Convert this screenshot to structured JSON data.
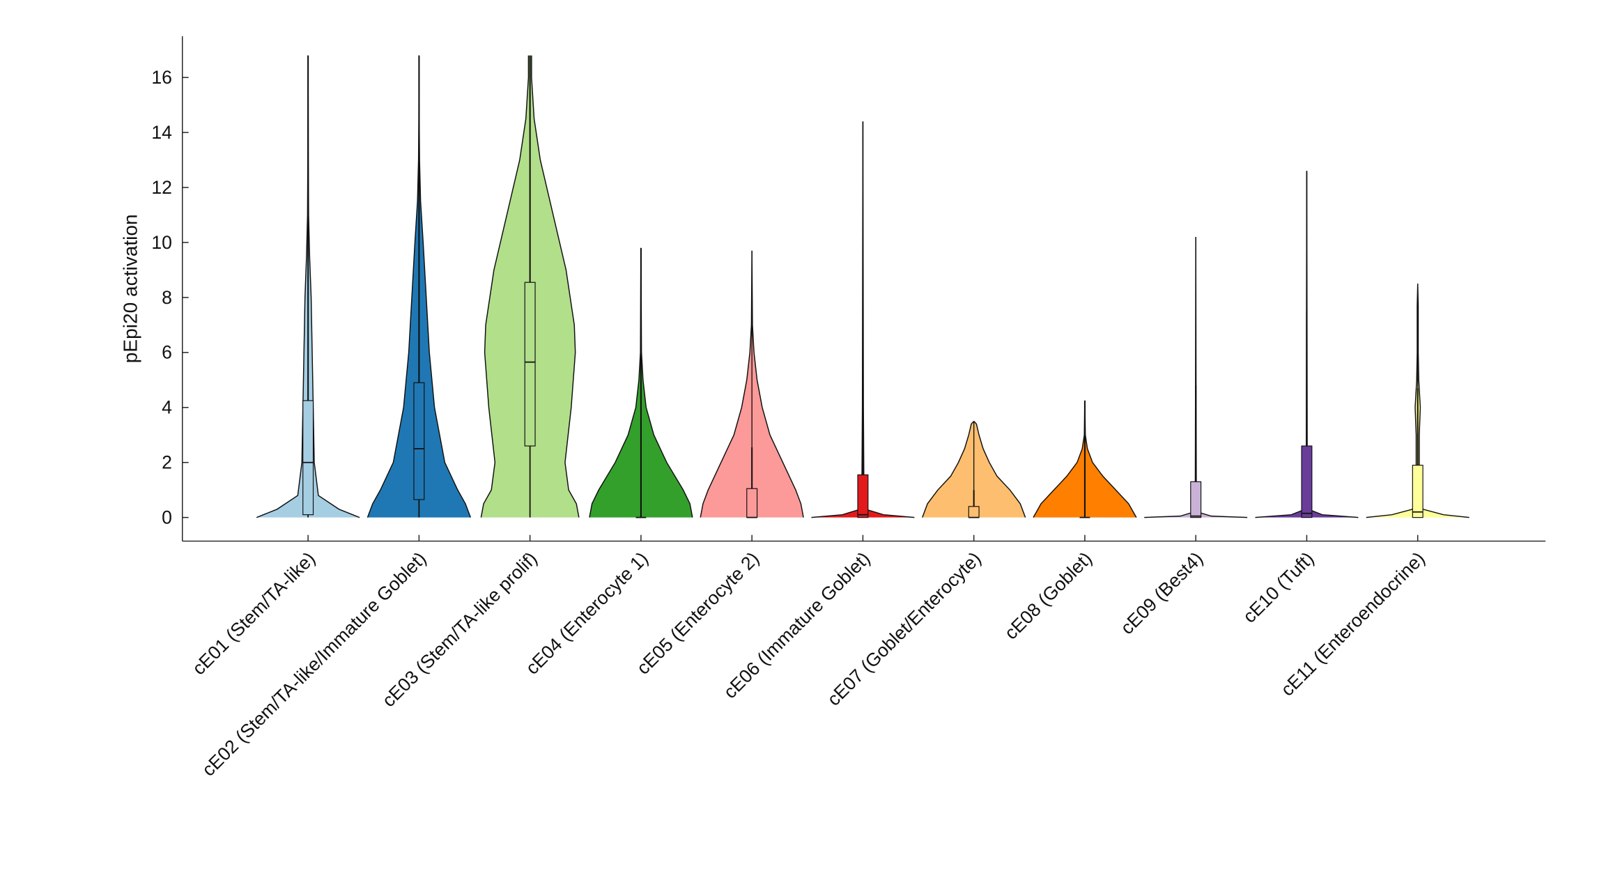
{
  "chart_data": {
    "type": "violin",
    "y_label": "pEpi20 activation",
    "ylim": [
      -0.86,
      17.5
    ],
    "yticks": [
      0,
      2,
      4,
      6,
      8,
      10,
      12,
      14,
      16
    ],
    "categories": [
      "cE01 (Stem/TA-like)",
      "cE02 (Stem/TA-like/Immature Goblet)",
      "cE03 (Stem/TA-like prolif)",
      "cE04 (Enterocyte 1)",
      "cE05 (Enterocyte 2)",
      "cE06 (Immature Goblet)",
      "cE07 (Goblet/Enterocyte)",
      "cE08 (Goblet)",
      "cE09 (Best4)",
      "cE10 (Tuft)",
      "cE11 (Enteroendocrine)"
    ],
    "colors": [
      "#a6cee3",
      "#1f78b4",
      "#b2df8a",
      "#33a02c",
      "#fb9a99",
      "#e31a1c",
      "#fdbf6f",
      "#ff7f00",
      "#cab2d6",
      "#6a3d9a",
      "#ffff99"
    ],
    "violins": [
      {
        "profile": {
          "y": [
            0,
            0.3,
            0.8,
            2,
            4,
            6,
            8,
            9.5,
            11,
            13,
            16.8
          ],
          "width": [
            1.0,
            0.6,
            0.2,
            0.12,
            0.1,
            0.08,
            0.06,
            0.03,
            0.01,
            0.005,
            0
          ]
        },
        "min": 0,
        "q1": 0.1,
        "median": 2.0,
        "q3": 4.25,
        "whisker": 16.8,
        "max": 16.8
      },
      {
        "profile": {
          "y": [
            0,
            0.5,
            1,
            2,
            3,
            4,
            6,
            8,
            10,
            11.5,
            13,
            14.5,
            16.8
          ],
          "width": [
            1.0,
            0.9,
            0.75,
            0.5,
            0.4,
            0.3,
            0.2,
            0.14,
            0.08,
            0.03,
            0.01,
            0.003,
            0
          ]
        },
        "min": 0,
        "q1": 0.65,
        "median": 2.5,
        "q3": 4.9,
        "whisker": 16.8,
        "max": 16.8
      },
      {
        "profile": {
          "y": [
            0,
            0.5,
            1,
            2,
            4,
            6,
            7,
            9,
            11,
            13,
            14.5,
            16,
            16.8
          ],
          "width": [
            0.95,
            0.9,
            0.75,
            0.68,
            0.8,
            0.88,
            0.86,
            0.7,
            0.45,
            0.2,
            0.08,
            0.03,
            0.03
          ]
        },
        "min": 0,
        "q1": 2.6,
        "median": 5.65,
        "q3": 8.55,
        "whisker": 16.8,
        "max": 16.8
      },
      {
        "profile": {
          "y": [
            0,
            0.5,
            1,
            2,
            3,
            4,
            5,
            6,
            9.8
          ],
          "width": [
            1.0,
            0.95,
            0.82,
            0.5,
            0.25,
            0.1,
            0.04,
            0.01,
            0
          ]
        },
        "min": 0,
        "q1": 0,
        "median": 0,
        "q3": 0,
        "whisker": 9.8,
        "max": 9.8
      },
      {
        "profile": {
          "y": [
            0,
            0.5,
            1,
            2,
            3,
            4,
            5,
            6,
            7,
            9.7
          ],
          "width": [
            1.0,
            0.95,
            0.85,
            0.6,
            0.35,
            0.2,
            0.1,
            0.04,
            0.01,
            0
          ]
        },
        "min": 0,
        "q1": 0,
        "median": 0,
        "q3": 1.05,
        "whisker": 2.55,
        "max": 9.7
      },
      {
        "profile": {
          "y": [
            0,
            0.1,
            0.3,
            1,
            4,
            14.4
          ],
          "width": [
            1.0,
            0.4,
            0.05,
            0.02,
            0.01,
            0
          ]
        },
        "min": 0,
        "q1": 0,
        "median": 0.1,
        "q3": 1.55,
        "whisker": 4.3,
        "max": 14.4
      },
      {
        "profile": {
          "y": [
            0,
            0.5,
            1,
            1.5,
            2,
            2.5,
            3,
            3.4,
            3.5
          ],
          "width": [
            1.0,
            0.9,
            0.7,
            0.45,
            0.3,
            0.18,
            0.1,
            0.05,
            0
          ]
        },
        "min": 0,
        "q1": 0,
        "median": 0,
        "q3": 0.4,
        "whisker": 1.0,
        "max": 3.5
      },
      {
        "profile": {
          "y": [
            0,
            0.5,
            1,
            1.5,
            2,
            2.5,
            3,
            4.25
          ],
          "width": [
            1.0,
            0.85,
            0.6,
            0.35,
            0.15,
            0.05,
            0.01,
            0
          ]
        },
        "min": 0,
        "q1": 0,
        "median": 0,
        "q3": 0,
        "whisker": 4.25,
        "max": 4.25
      },
      {
        "profile": {
          "y": [
            0,
            0.05,
            0.2,
            1,
            5,
            10.2
          ],
          "width": [
            1.0,
            0.3,
            0.03,
            0.01,
            0.005,
            0
          ]
        },
        "min": 0,
        "q1": 0,
        "median": 0.05,
        "q3": 1.3,
        "whisker": 4.8,
        "max": 10.2
      },
      {
        "profile": {
          "y": [
            0,
            0.1,
            0.3,
            1,
            7.5,
            12.6
          ],
          "width": [
            1.0,
            0.3,
            0.03,
            0.01,
            0.005,
            0
          ]
        },
        "min": 0,
        "q1": 0,
        "median": 0.15,
        "q3": 2.6,
        "whisker": 7.5,
        "max": 12.6
      },
      {
        "profile": {
          "y": [
            0,
            0.1,
            0.3,
            0.8,
            1.5,
            3,
            4,
            5,
            6,
            7.7,
            8.5
          ],
          "width": [
            1.0,
            0.5,
            0.1,
            0.03,
            0.03,
            0.03,
            0.05,
            0.02,
            0.01,
            0.01,
            0
          ]
        },
        "min": 0,
        "q1": 0,
        "median": 0.2,
        "q3": 1.9,
        "whisker": 4.7,
        "max": 8.5
      }
    ]
  }
}
